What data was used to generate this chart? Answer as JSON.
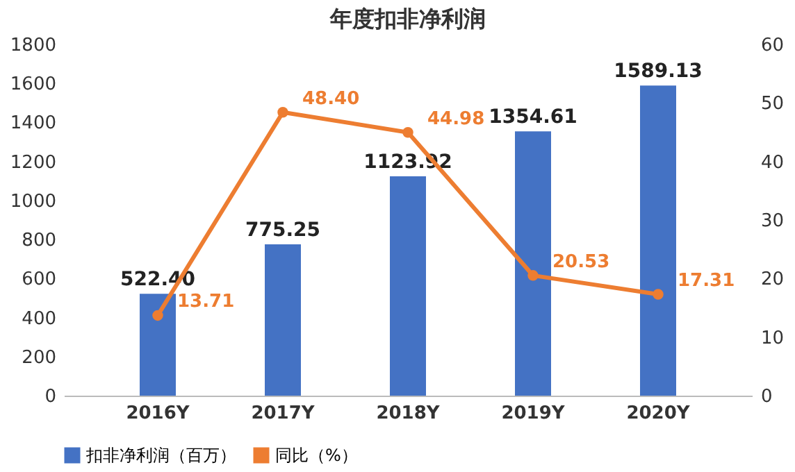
{
  "chart_data": {
    "type": "bar",
    "title": "年度扣非净利润",
    "categories": [
      "2016Y",
      "2017Y",
      "2018Y",
      "2019Y",
      "2020Y"
    ],
    "series": [
      {
        "name": "扣非净利润（百万）",
        "color": "#4472c4",
        "values": [
          522.4,
          775.25,
          1123.92,
          1354.61,
          1589.13
        ],
        "value_labels": [
          "522.40",
          "775.25",
          "1123.92",
          "1354.61",
          "1589.13"
        ]
      },
      {
        "name": "同比（%）",
        "type": "line",
        "axis": "y2",
        "color": "#ed7d31",
        "marker": "circle",
        "values": [
          13.71,
          48.4,
          44.98,
          20.53,
          17.31
        ],
        "value_labels": [
          "13.71",
          "48.40",
          "44.98",
          "20.53",
          "17.31"
        ]
      }
    ],
    "ylim": [
      0,
      1800
    ],
    "yticks": [
      0,
      200,
      400,
      600,
      800,
      1000,
      1200,
      1400,
      1600,
      1800
    ],
    "y2lim": [
      0,
      60
    ],
    "y2ticks": [
      0,
      10,
      20,
      30,
      40,
      50,
      60
    ],
    "legend": "bottom",
    "grid": false
  }
}
